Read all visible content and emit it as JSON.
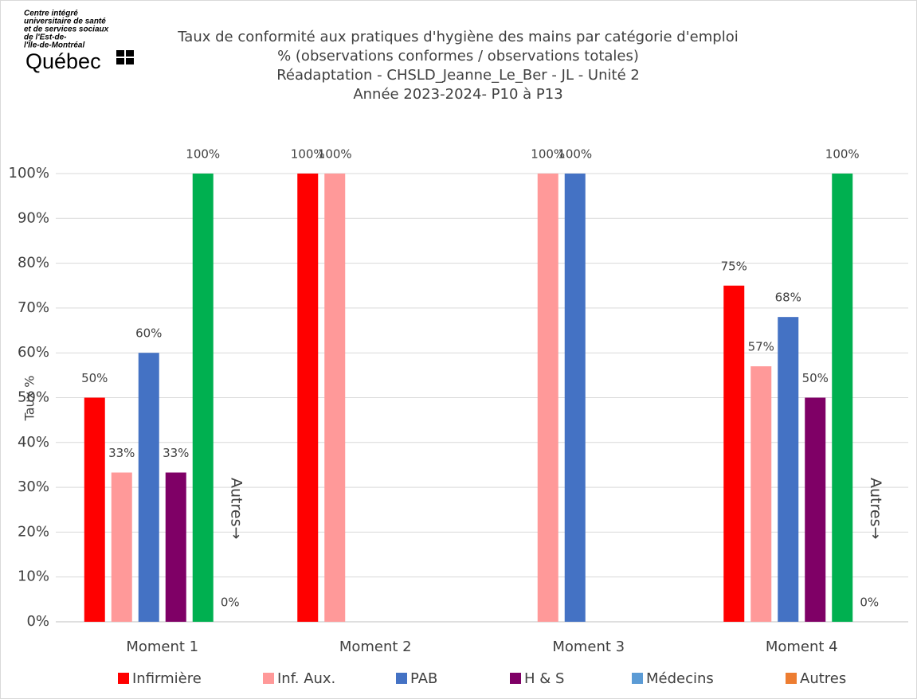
{
  "logo": {
    "lines": [
      "Centre intégré",
      "universitaire de santé",
      "et de services sociaux",
      "de l'Est-de-",
      "l'Île-de-Montréal"
    ],
    "brand": "Québec"
  },
  "chart_data": {
    "type": "bar",
    "title": [
      "Taux de conformité aux pratiques d'hygiène des mains par catégorie d'emploi",
      "% (observations conformes / observations totales)",
      "Réadaptation - CHSLD_Jeanne_Le_Ber - JL - Unité 2",
      "Année 2023-2024- P10 à P13"
    ],
    "y_label": "Taux %",
    "categories": [
      "Moment 1",
      "Moment 2",
      "Moment 3",
      "Moment 4"
    ],
    "series": [
      {
        "name": "Infirmière",
        "color": "#ff0000",
        "values": [
          50,
          100,
          null,
          75
        ],
        "value_labels": [
          "50%",
          "100%",
          null,
          "75%"
        ]
      },
      {
        "name": "Inf. Aux.",
        "color": "#ff9999",
        "values": [
          33.3,
          100,
          100,
          57
        ],
        "value_labels": [
          "33%",
          "100%",
          "100%",
          "57%"
        ]
      },
      {
        "name": "PAB",
        "color": "#4472c4",
        "values": [
          60,
          null,
          100,
          68
        ],
        "value_labels": [
          "60%",
          null,
          "100%",
          "68%"
        ]
      },
      {
        "name": "H & S",
        "color": "#7f0066",
        "values": [
          33.3,
          null,
          null,
          50
        ],
        "value_labels": [
          "33%",
          null,
          null,
          "50%"
        ]
      },
      {
        "name": "Médecins",
        "color": "#5b9bd5",
        "bar_color": "#00b050",
        "values": [
          100,
          null,
          null,
          100
        ],
        "value_labels": [
          "100%",
          null,
          null,
          "100%"
        ]
      },
      {
        "name": "Autres",
        "color": "#ed7d31",
        "values": [
          0,
          null,
          null,
          0
        ],
        "value_labels": [
          "0%",
          null,
          null,
          "0%"
        ]
      }
    ],
    "annotations": [
      {
        "text": "Autres→",
        "category": 0
      },
      {
        "text": "Autres→",
        "category": 3
      }
    ],
    "ylim": [
      0,
      100
    ],
    "yticks": [
      {
        "value": 0,
        "label": "0%"
      },
      {
        "value": 10,
        "label": "10%"
      },
      {
        "value": 20,
        "label": "20%"
      },
      {
        "value": 30,
        "label": "30%"
      },
      {
        "value": 40,
        "label": "40%"
      },
      {
        "value": 50,
        "label": "50%"
      },
      {
        "value": 60,
        "label": "60%"
      },
      {
        "value": 70,
        "label": "70%"
      },
      {
        "value": 80,
        "label": "80%"
      },
      {
        "value": 90,
        "label": "90%"
      },
      {
        "value": 100,
        "label": "100%"
      }
    ],
    "grid": true,
    "legend": "bottom"
  }
}
